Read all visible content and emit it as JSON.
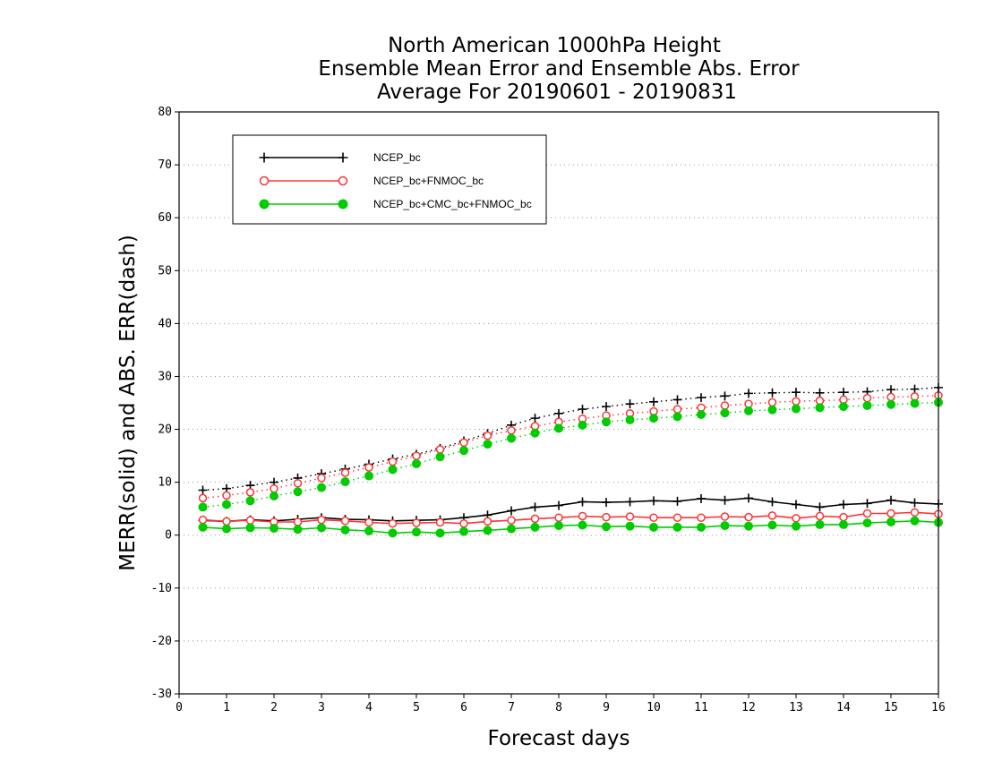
{
  "chart_data": {
    "type": "line",
    "title_lines": [
      "North American 1000hPa Height",
      "Ensemble Mean Error and Ensemble Abs. Error",
      "Average For 20190601 - 20190831"
    ],
    "xlabel": "Forecast days",
    "ylabel": "MERR(solid) and ABS. ERR(dash)",
    "xlim": [
      0,
      16
    ],
    "ylim": [
      -30,
      80
    ],
    "xticks": [
      "0",
      "1",
      "2",
      "3",
      "4",
      "5",
      "6",
      "7",
      "8",
      "9",
      "10",
      "11",
      "12",
      "13",
      "14",
      "15",
      "16"
    ],
    "yticks": [
      "80",
      "70",
      "60",
      "50",
      "40",
      "30",
      "20",
      "10",
      "0",
      "-10",
      "-20",
      "-30"
    ],
    "grid": "horizontal-dotted",
    "legend_position": "top-left",
    "x": [
      0.5,
      1,
      1.5,
      2,
      2.5,
      3,
      3.5,
      4,
      4.5,
      5,
      5.5,
      6,
      6.5,
      7,
      7.5,
      8,
      8.5,
      9,
      9.5,
      10,
      10.5,
      11,
      11.5,
      12,
      12.5,
      13,
      13.5,
      14,
      14.5,
      15,
      15.5,
      16
    ],
    "series": [
      {
        "name": "NCEP_bc",
        "color": "#000000",
        "marker": "plus",
        "merr": [
          2.8,
          2.6,
          2.9,
          2.7,
          3.0,
          3.3,
          3.0,
          2.9,
          2.7,
          2.8,
          2.9,
          3.3,
          3.8,
          4.6,
          5.3,
          5.6,
          6.3,
          6.2,
          6.3,
          6.5,
          6.4,
          6.9,
          6.6,
          7.0,
          6.3,
          5.8,
          5.3,
          5.8,
          6.0,
          6.6,
          6.1,
          5.9
        ],
        "abs_err": [
          8.5,
          8.8,
          9.4,
          10.0,
          10.8,
          11.6,
          12.5,
          13.4,
          14.4,
          15.3,
          16.4,
          17.8,
          19.2,
          20.8,
          22.1,
          23.0,
          23.8,
          24.3,
          24.8,
          25.2,
          25.6,
          26.0,
          26.3,
          26.8,
          26.9,
          27.0,
          26.9,
          27.0,
          27.1,
          27.5,
          27.6,
          27.9
        ]
      },
      {
        "name": "NCEP_bc+FNMOC_bc",
        "color": "#ff3333",
        "marker": "open-circle",
        "merr": [
          2.9,
          2.6,
          2.8,
          2.5,
          2.5,
          2.9,
          2.7,
          2.4,
          2.2,
          2.3,
          2.4,
          2.2,
          2.6,
          2.8,
          3.1,
          3.3,
          3.6,
          3.4,
          3.5,
          3.3,
          3.3,
          3.3,
          3.5,
          3.4,
          3.7,
          3.2,
          3.6,
          3.4,
          4.1,
          4.1,
          4.3,
          4.0
        ],
        "abs_err": [
          7.0,
          7.5,
          8.1,
          8.8,
          9.8,
          10.8,
          11.8,
          12.8,
          13.9,
          15.0,
          16.2,
          17.5,
          18.8,
          19.8,
          20.6,
          21.4,
          22.0,
          22.6,
          23.0,
          23.4,
          23.8,
          24.1,
          24.5,
          24.8,
          25.1,
          25.3,
          25.4,
          25.6,
          25.9,
          26.1,
          26.2,
          26.4
        ]
      },
      {
        "name": "NCEP_bc+CMC_bc+FNMOC_bc",
        "color": "#00cc00",
        "marker": "filled-circle",
        "merr": [
          1.5,
          1.2,
          1.4,
          1.3,
          1.1,
          1.4,
          1.0,
          0.8,
          0.4,
          0.6,
          0.4,
          0.7,
          0.9,
          1.2,
          1.5,
          1.8,
          1.9,
          1.6,
          1.7,
          1.5,
          1.5,
          1.5,
          1.8,
          1.7,
          1.9,
          1.7,
          2.0,
          2.0,
          2.3,
          2.5,
          2.7,
          2.4
        ],
        "abs_err": [
          5.3,
          5.8,
          6.5,
          7.4,
          8.2,
          9.0,
          10.1,
          11.2,
          12.4,
          13.5,
          14.8,
          16.0,
          17.2,
          18.3,
          19.3,
          20.2,
          20.8,
          21.4,
          21.8,
          22.1,
          22.4,
          22.8,
          23.1,
          23.5,
          23.7,
          23.9,
          24.1,
          24.3,
          24.5,
          24.7,
          24.9,
          25.1
        ]
      }
    ]
  }
}
